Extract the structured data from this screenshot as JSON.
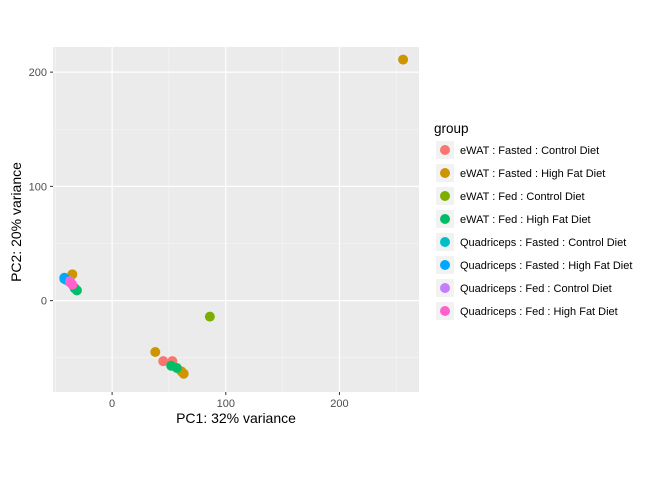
{
  "chart_data": {
    "type": "scatter",
    "title": "",
    "xlabel": "PC1: 32% variance",
    "ylabel": "PC2: 20% variance",
    "xlim": [
      -52,
      270
    ],
    "ylim": [
      -80,
      222
    ],
    "x_ticks": [
      0,
      100,
      200
    ],
    "y_ticks": [
      0,
      100,
      200
    ],
    "grid": true,
    "legend": {
      "title": "group",
      "position": "right"
    },
    "series": [
      {
        "name": "eWAT : Fasted : Control Diet",
        "color": "#F8766D",
        "points": [
          [
            45,
            -53
          ],
          [
            53,
            -53
          ]
        ]
      },
      {
        "name": "eWAT : Fasted : High Fat Diet",
        "color": "#CD9600",
        "points": [
          [
            256,
            211
          ],
          [
            -35,
            23
          ],
          [
            38,
            -45
          ],
          [
            61,
            -62
          ],
          [
            63,
            -64
          ]
        ]
      },
      {
        "name": "eWAT : Fed : Control Diet",
        "color": "#7CAE00",
        "points": [
          [
            86,
            -14
          ]
        ]
      },
      {
        "name": "eWAT : Fed : High Fat Diet",
        "color": "#00BE67",
        "points": [
          [
            -33,
            11
          ],
          [
            -31,
            9
          ],
          [
            52,
            -57
          ],
          [
            57,
            -59
          ]
        ]
      },
      {
        "name": "Quadriceps : Fasted : Control Diet",
        "color": "#00BFC4",
        "points": [
          [
            -42,
            19
          ]
        ]
      },
      {
        "name": "Quadriceps : Fasted : High Fat Diet",
        "color": "#00A9FF",
        "points": [
          [
            -42,
            20
          ],
          [
            -40,
            18
          ]
        ]
      },
      {
        "name": "Quadriceps : Fed : Control Diet",
        "color": "#C77CFF",
        "points": [
          [
            -37,
            17
          ]
        ]
      },
      {
        "name": "Quadriceps : Fed : High Fat Diet",
        "color": "#FF61CC",
        "points": [
          [
            -37,
            16
          ],
          [
            -35,
            14
          ]
        ]
      }
    ]
  }
}
